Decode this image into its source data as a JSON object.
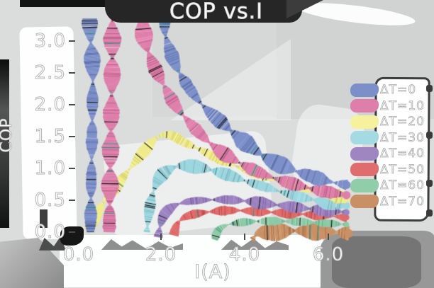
{
  "title": "COP vs.I",
  "axes": {
    "x": {
      "label": "I(A)",
      "ticks": [
        "0.0",
        "2.0",
        "4.0",
        "6.0"
      ]
    },
    "y": {
      "label": "COP",
      "ticks": [
        "3.0",
        "2.5",
        "2.0",
        "1.5",
        "1.0",
        "0.5",
        "0.0"
      ]
    }
  },
  "legend": {
    "items": [
      {
        "label": "ΔT=0",
        "color": "#7c8fc9"
      },
      {
        "label": "ΔT=10",
        "color": "#de7fab"
      },
      {
        "label": "ΔT=20",
        "color": "#f5f19c"
      },
      {
        "label": "ΔT=30",
        "color": "#a4dae2"
      },
      {
        "label": "ΔT=40",
        "color": "#9f86c2"
      },
      {
        "label": "ΔT=50",
        "color": "#e06d6d"
      },
      {
        "label": "ΔT=60",
        "color": "#90cda9"
      },
      {
        "label": "ΔT=70",
        "color": "#c99065"
      }
    ]
  },
  "chart_data": {
    "type": "line",
    "style": "xkcd-sketch-ribbons",
    "title": "COP vs.I",
    "xlabel": "I(A)",
    "ylabel": "COP",
    "xlim": [
      0,
      6.6
    ],
    "ylim": [
      0,
      3.3
    ],
    "xticks": [
      0.0,
      2.0,
      4.0,
      6.0
    ],
    "yticks": [
      0.0,
      0.5,
      1.0,
      1.5,
      2.0,
      2.5,
      3.0
    ],
    "grid": false,
    "legend_position": "right",
    "clip_top": 3.3,
    "series": [
      {
        "name": "ΔT=0",
        "color": "#7c8fc9",
        "peak_offscale": true,
        "points": [
          [
            0.33,
            0
          ],
          [
            0.36,
            1.2
          ],
          [
            0.39,
            2.4
          ],
          [
            0.44,
            3.7
          ],
          [
            1.95,
            3.7
          ],
          [
            2.12,
            3.1
          ],
          [
            2.35,
            2.65
          ],
          [
            2.6,
            2.35
          ],
          [
            3.0,
            2.0
          ],
          [
            3.5,
            1.7
          ],
          [
            4.0,
            1.42
          ],
          [
            4.5,
            1.18
          ],
          [
            5.0,
            1.02
          ],
          [
            5.5,
            0.9
          ],
          [
            6.0,
            0.8
          ],
          [
            6.45,
            0.74
          ]
        ]
      },
      {
        "name": "ΔT=10",
        "color": "#de7fab",
        "peak_offscale": true,
        "points": [
          [
            0.78,
            0
          ],
          [
            0.81,
            1.2
          ],
          [
            0.85,
            2.5
          ],
          [
            0.92,
            3.7
          ],
          [
            1.48,
            3.7
          ],
          [
            1.62,
            3.05
          ],
          [
            1.8,
            2.68
          ],
          [
            2.05,
            2.35
          ],
          [
            2.35,
            2.0
          ],
          [
            2.7,
            1.72
          ],
          [
            3.1,
            1.45
          ],
          [
            3.5,
            1.24
          ],
          [
            4.0,
            1.05
          ],
          [
            4.5,
            0.9
          ],
          [
            5.0,
            0.79
          ],
          [
            5.5,
            0.7
          ],
          [
            6.0,
            0.63
          ],
          [
            6.45,
            0.58
          ]
        ]
      },
      {
        "name": "ΔT=20",
        "color": "#f0eb8a",
        "points": [
          [
            0.28,
            0.02
          ],
          [
            0.6,
            0.42
          ],
          [
            0.95,
            0.72
          ],
          [
            1.3,
            1.02
          ],
          [
            1.65,
            1.3
          ],
          [
            1.95,
            1.5
          ],
          [
            2.25,
            1.52
          ],
          [
            2.6,
            1.4
          ],
          [
            3.0,
            1.28
          ],
          [
            3.5,
            1.12
          ],
          [
            4.0,
            0.99
          ],
          [
            4.5,
            0.87
          ],
          [
            5.0,
            0.77
          ],
          [
            5.5,
            0.68
          ],
          [
            6.0,
            0.6
          ],
          [
            6.45,
            0.53
          ]
        ]
      },
      {
        "name": "ΔT=30",
        "color": "#9cd6df",
        "points": [
          [
            1.68,
            0
          ],
          [
            1.74,
            0.35
          ],
          [
            1.83,
            0.62
          ],
          [
            1.98,
            0.85
          ],
          [
            2.2,
            0.98
          ],
          [
            2.5,
            1.04
          ],
          [
            2.9,
            1.02
          ],
          [
            3.3,
            0.96
          ],
          [
            3.7,
            0.88
          ],
          [
            4.1,
            0.79
          ],
          [
            4.5,
            0.71
          ],
          [
            5.0,
            0.61
          ],
          [
            5.5,
            0.53
          ],
          [
            6.0,
            0.46
          ],
          [
            6.45,
            0.41
          ]
        ]
      },
      {
        "name": "ΔT=40",
        "color": "#9c82c0",
        "points": [
          [
            1.95,
            -0.08
          ],
          [
            2.0,
            0.1
          ],
          [
            2.1,
            0.28
          ],
          [
            2.3,
            0.4
          ],
          [
            2.6,
            0.47
          ],
          [
            3.0,
            0.5
          ],
          [
            3.5,
            0.51
          ],
          [
            4.0,
            0.49
          ],
          [
            4.5,
            0.45
          ],
          [
            5.0,
            0.41
          ],
          [
            5.5,
            0.37
          ],
          [
            6.0,
            0.34
          ],
          [
            6.45,
            0.31
          ]
        ]
      },
      {
        "name": "ΔT=50",
        "color": "#df6a6a",
        "points": [
          [
            2.32,
            -0.05
          ],
          [
            2.4,
            0.12
          ],
          [
            2.55,
            0.22
          ],
          [
            2.8,
            0.28
          ],
          [
            3.2,
            0.32
          ],
          [
            3.7,
            0.34
          ],
          [
            4.2,
            0.33
          ],
          [
            4.7,
            0.31
          ],
          [
            5.2,
            0.29
          ],
          [
            5.7,
            0.27
          ],
          [
            6.1,
            0.25
          ],
          [
            6.45,
            0.23
          ]
        ]
      },
      {
        "name": "ΔT=60",
        "color": "#8ccaa6",
        "points": [
          [
            3.3,
            -0.12
          ],
          [
            3.38,
            0.02
          ],
          [
            3.55,
            0.1
          ],
          [
            3.9,
            0.15
          ],
          [
            4.4,
            0.17
          ],
          [
            4.9,
            0.17
          ],
          [
            5.4,
            0.16
          ],
          [
            5.9,
            0.14
          ],
          [
            6.45,
            0.12
          ]
        ]
      },
      {
        "name": "ΔT=70",
        "color": "#c99065",
        "points": [
          [
            4.2,
            -0.12
          ],
          [
            4.35,
            -0.02
          ],
          [
            4.7,
            0.0
          ],
          [
            5.1,
            0.02
          ],
          [
            5.5,
            0.02
          ],
          [
            5.9,
            0.01
          ],
          [
            6.2,
            0.0
          ],
          [
            6.5,
            -0.02
          ]
        ]
      }
    ]
  }
}
